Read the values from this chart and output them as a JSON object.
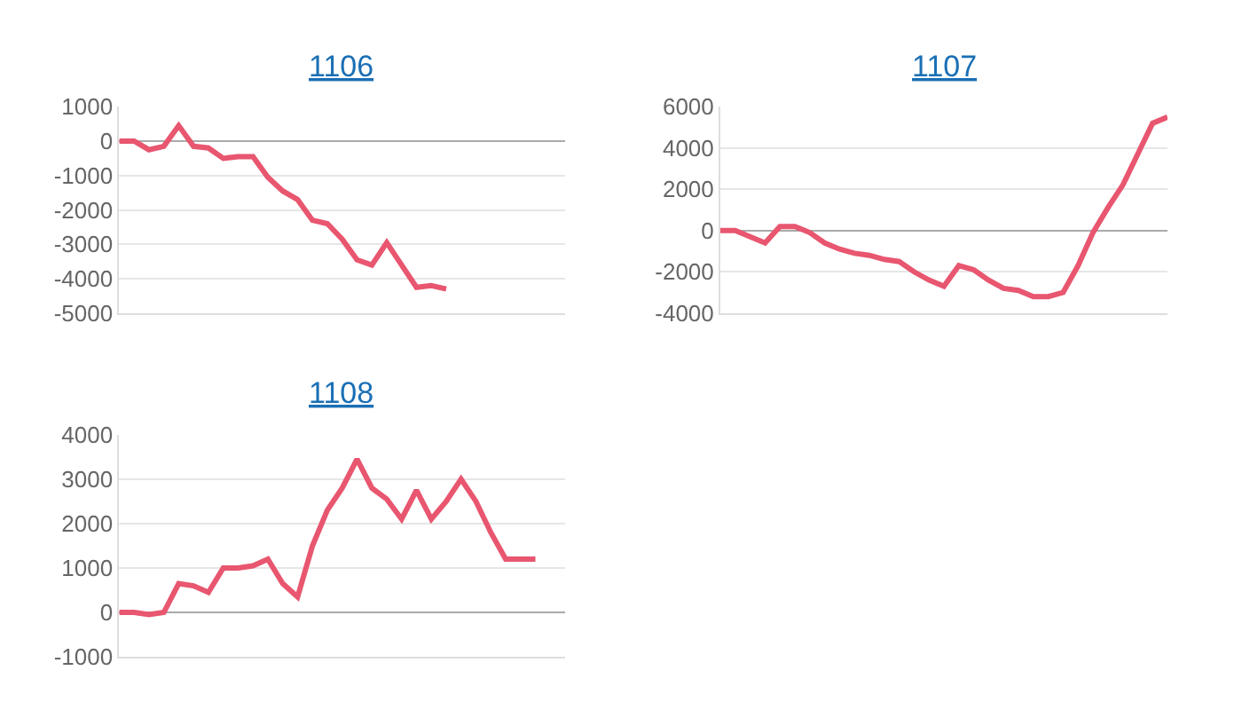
{
  "chart_data": [
    {
      "type": "line",
      "title": "1106",
      "categories": [
        null,
        null,
        null,
        null,
        null,
        null,
        null,
        null,
        null,
        null,
        null,
        null,
        null,
        null,
        null,
        null,
        null,
        null,
        null,
        null,
        null,
        null,
        null,
        null,
        null,
        null,
        null,
        null,
        null,
        null,
        null
      ],
      "series": [
        {
          "color": "#e8566f",
          "values": [
            0,
            0,
            -250,
            -150,
            450,
            -150,
            -200,
            -500,
            -450,
            -450,
            -1050,
            -1450,
            -1700,
            -2300,
            -2400,
            -2850,
            -3450,
            -3600,
            -2950,
            -3600,
            -4250,
            -4200,
            -4300,
            null,
            null,
            null,
            null,
            null,
            null,
            null,
            null
          ]
        }
      ],
      "ylim": [
        -5000,
        1000
      ],
      "yticks": [
        -5000,
        -4000,
        -3000,
        -2000,
        -1000,
        0,
        1000
      ],
      "grid": "y",
      "tick_labels": "y",
      "marker": "none",
      "line_style": "solid"
    },
    {
      "type": "line",
      "title": "1107",
      "categories": [
        null,
        null,
        null,
        null,
        null,
        null,
        null,
        null,
        null,
        null,
        null,
        null,
        null,
        null,
        null,
        null,
        null,
        null,
        null,
        null,
        null,
        null,
        null,
        null,
        null,
        null,
        null,
        null,
        null,
        null,
        null
      ],
      "series": [
        {
          "color": "#e8566f",
          "values": [
            0,
            0,
            -300,
            -600,
            200,
            200,
            -100,
            -600,
            -900,
            -1100,
            -1200,
            -1400,
            -1500,
            -2000,
            -2400,
            -2700,
            -1700,
            -1900,
            -2400,
            -2800,
            -2900,
            -3200,
            -3200,
            -3000,
            -1700,
            -100,
            1100,
            2200,
            3700,
            5200,
            5500
          ]
        }
      ],
      "ylim": [
        -4000,
        6000
      ],
      "yticks": [
        -4000,
        -2000,
        0,
        2000,
        4000,
        6000
      ],
      "grid": "y",
      "tick_labels": "y",
      "marker": "none",
      "line_style": "solid"
    },
    {
      "type": "line",
      "title": "1108",
      "categories": [
        null,
        null,
        null,
        null,
        null,
        null,
        null,
        null,
        null,
        null,
        null,
        null,
        null,
        null,
        null,
        null,
        null,
        null,
        null,
        null,
        null,
        null,
        null,
        null,
        null,
        null,
        null,
        null,
        null,
        null,
        null
      ],
      "series": [
        {
          "color": "#e8566f",
          "values": [
            0,
            0,
            -50,
            0,
            650,
            600,
            450,
            1000,
            1000,
            1050,
            1200,
            650,
            350,
            1500,
            2300,
            2800,
            3450,
            2800,
            2550,
            2100,
            2750,
            2100,
            2500,
            3000,
            2500,
            1800,
            1200,
            1200,
            1200,
            null,
            null
          ]
        }
      ],
      "ylim": [
        -1000,
        4000
      ],
      "yticks": [
        -1000,
        0,
        1000,
        2000,
        3000,
        4000
      ],
      "grid": "y",
      "tick_labels": "y",
      "marker": "none",
      "line_style": "solid"
    }
  ]
}
